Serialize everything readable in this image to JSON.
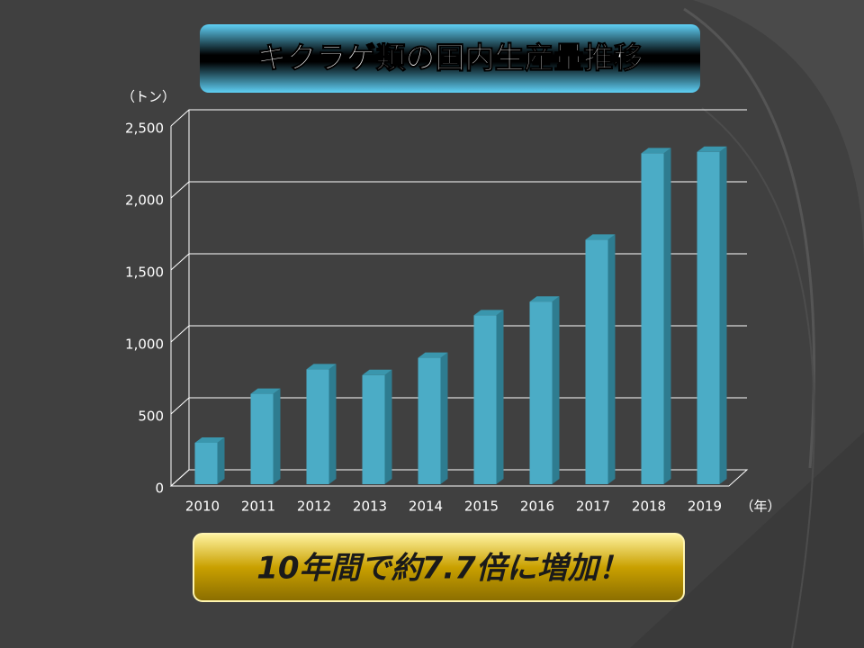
{
  "chart_data": {
    "type": "bar3d",
    "title": "キクラゲ類の国内生産量推移",
    "y_label": "（トン）",
    "x_label": "（年）",
    "annotation": "10年間で約7.7倍に増加！",
    "categories": [
      "2010",
      "2011",
      "2012",
      "2013",
      "2014",
      "2015",
      "2016",
      "2017",
      "2018",
      "2019"
    ],
    "values": [
      300,
      640,
      810,
      770,
      890,
      1185,
      1280,
      1710,
      2310,
      2320
    ],
    "color": "#4bacc6",
    "ylim": [
      0,
      2500
    ],
    "yticks": [
      0,
      500,
      {
        "value": 1000,
        "label": "1,000"
      },
      {
        "value": 1500,
        "label": "1,500"
      },
      {
        "value": 2000,
        "label": "2,000"
      },
      {
        "value": 2500,
        "label": "2,500"
      }
    ],
    "grid": true
  }
}
